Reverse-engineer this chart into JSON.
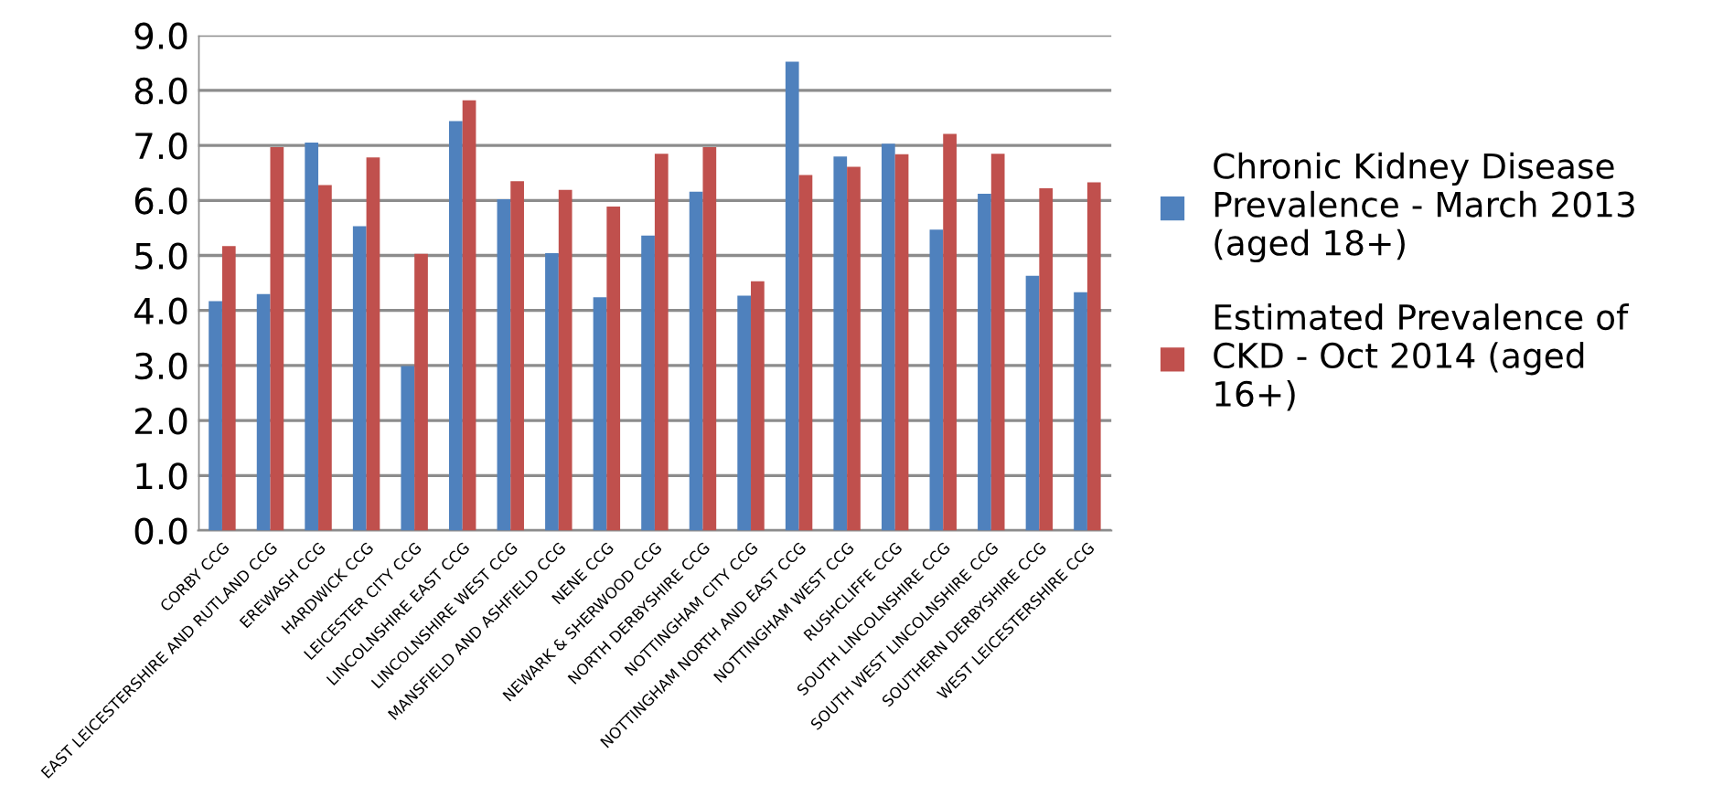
{
  "chart_data": {
    "type": "bar",
    "categories": [
      "CORBY CCG",
      "EAST LEICESTERSHIRE AND RUTLAND CCG",
      "EREWASH CCG",
      "HARDWICK CCG",
      "LEICESTER CITY CCG",
      "LINCOLNSHIRE EAST CCG",
      "LINCOLNSHIRE WEST CCG",
      "MANSFIELD AND ASHFIELD CCG",
      "NENE CCG",
      "NEWARK & SHERWOOD CCG",
      "NORTH DERBYSHIRE CCG",
      "NOTTINGHAM CITY CCG",
      "NOTTINGHAM NORTH AND EAST CCG",
      "NOTTINGHAM WEST CCG",
      "RUSHCLIFFE CCG",
      "SOUTH LINCOLNSHIRE CCG",
      "SOUTH WEST LINCOLNSHIRE CCG",
      "SOUTHERN DERBYSHIRE CCG",
      "WEST LEICESTERSHIRE CCG"
    ],
    "series": [
      {
        "name": "Chronic Kidney Disease Prevalence - March 2013 (aged 18+)",
        "color": "#4f81bd",
        "values": [
          4.17,
          4.3,
          7.05,
          5.53,
          2.99,
          7.44,
          6.02,
          5.04,
          4.24,
          5.36,
          6.16,
          4.27,
          8.52,
          6.8,
          7.03,
          5.47,
          6.12,
          4.63,
          4.33
        ]
      },
      {
        "name": "Estimated Prevalence of CKD - Oct 2014 (aged 16+)",
        "color": "#c0504d",
        "values": [
          5.17,
          6.97,
          6.28,
          6.78,
          5.03,
          7.82,
          6.35,
          6.19,
          5.89,
          6.85,
          6.97,
          4.53,
          6.46,
          6.61,
          6.84,
          7.21,
          6.85,
          6.22,
          6.33
        ]
      }
    ],
    "ylim": [
      0,
      9
    ],
    "yticks": [
      {
        "value": 0,
        "label": "0.0"
      },
      {
        "value": 1,
        "label": "1.0"
      },
      {
        "value": 2,
        "label": "2.0"
      },
      {
        "value": 3,
        "label": "3.0"
      },
      {
        "value": 4,
        "label": "4.0"
      },
      {
        "value": 5,
        "label": "5.0"
      },
      {
        "value": 6,
        "label": "6.0"
      },
      {
        "value": 7,
        "label": "7.0"
      },
      {
        "value": 8,
        "label": "8.0"
      },
      {
        "value": 9,
        "label": "9.0"
      }
    ],
    "grid": "y",
    "legend": "right"
  }
}
